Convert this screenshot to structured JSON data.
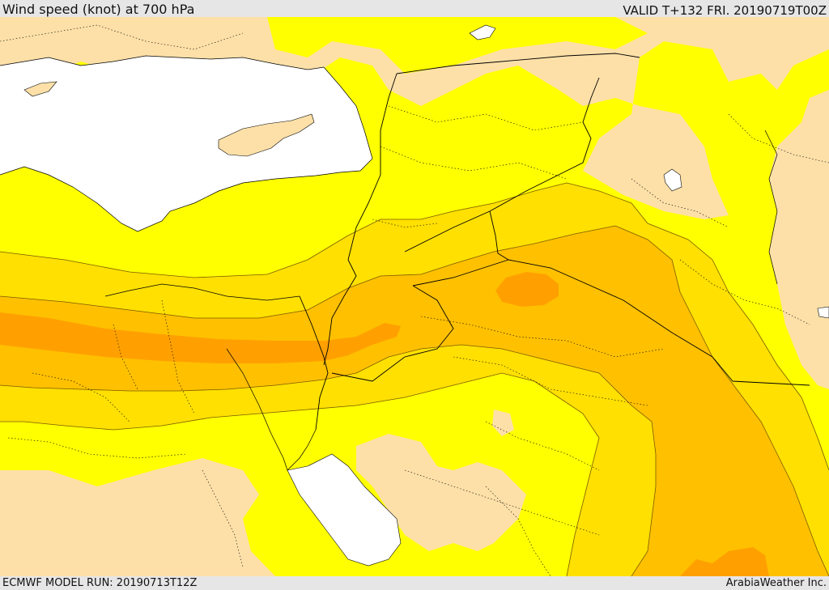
{
  "header": {
    "title": "Wind speed (knot) at 700 hPa",
    "valid_time": "VALID T+132 FRI. 20190719T00Z"
  },
  "footer": {
    "model_run": "ECMWF MODEL RUN: 20190713T12Z",
    "credit": "ArabiaWeather Inc."
  },
  "legend_colors": {
    "sea": "#ffffff",
    "lightest_band": "#fde0a8",
    "band_yellow": "#ffff00",
    "band_gold": "#ffe000",
    "band_amber": "#ffc000",
    "band_orange": "#ffa000",
    "border_line": "#000000"
  }
}
